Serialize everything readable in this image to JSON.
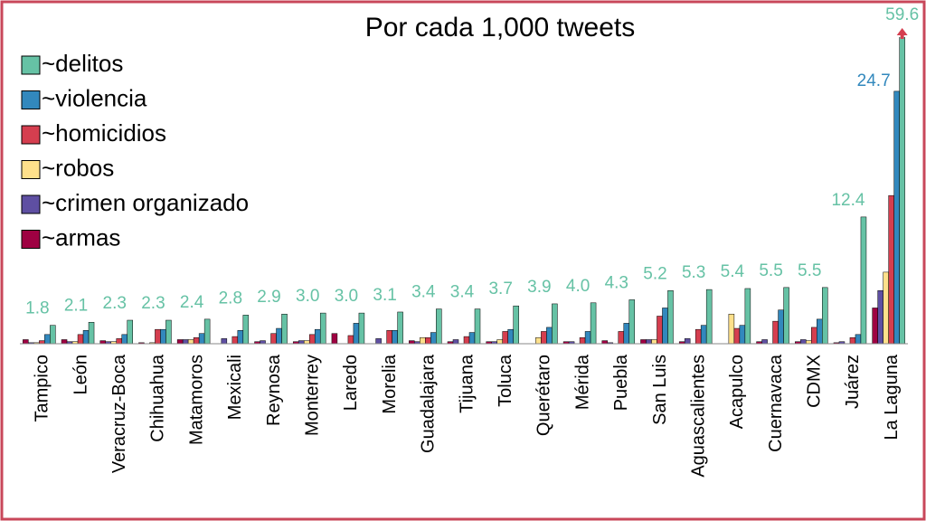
{
  "chart_data": {
    "type": "bar",
    "title": "Por cada 1,000 tweets",
    "categories": [
      "Tampico",
      "León",
      "Veracruz-Boca",
      "Chihuahua",
      "Matamoros",
      "Mexicali",
      "Reynosa",
      "Monterrey",
      "Laredo",
      "Morelia",
      "Guadalajara",
      "Tijuana",
      "Toluca",
      "Querétaro",
      "Mérida",
      "Puebla",
      "San Luis",
      "Aguascalientes",
      "Acapulco",
      "Cuernavaca",
      "CDMX",
      "Juárez",
      "La Laguna"
    ],
    "ylim": [
      0,
      30
    ],
    "legend": "upper left",
    "series": [
      {
        "name": "~delitos",
        "color": "#66c2a5",
        "values": [
          1.8,
          2.1,
          2.3,
          2.3,
          2.4,
          2.8,
          2.9,
          3.0,
          3.0,
          3.1,
          3.4,
          3.4,
          3.7,
          3.9,
          4.0,
          4.3,
          5.2,
          5.3,
          5.4,
          5.5,
          5.5,
          12.4,
          59.6
        ],
        "value_labels": [
          "1.8",
          "2.1",
          "2.3",
          "2.3",
          "2.4",
          "2.8",
          "2.9",
          "3.0",
          "3.0",
          "3.1",
          "3.4",
          "3.4",
          "3.7",
          "3.9",
          "4.0",
          "4.3",
          "5.2",
          "5.3",
          "5.4",
          "5.5",
          "5.5",
          "12.4",
          "59.6"
        ]
      },
      {
        "name": "~violencia",
        "color": "#3288bd",
        "values": [
          0.9,
          1.3,
          0.9,
          1.4,
          1.0,
          1.3,
          1.5,
          1.4,
          2.0,
          1.3,
          1.1,
          1.1,
          1.4,
          1.6,
          1.2,
          2.0,
          3.5,
          1.8,
          1.8,
          3.3,
          2.4,
          0.9,
          24.7
        ],
        "value_labels": [
          null,
          null,
          null,
          null,
          null,
          null,
          null,
          null,
          null,
          null,
          null,
          null,
          null,
          null,
          null,
          null,
          null,
          null,
          null,
          null,
          null,
          null,
          "24.7"
        ]
      },
      {
        "name": "~homicidios",
        "color": "#d53e4f",
        "values": [
          0.3,
          0.9,
          0.5,
          1.4,
          0.6,
          0.7,
          1.0,
          0.9,
          0.8,
          1.3,
          0.6,
          0.7,
          1.2,
          1.2,
          0.6,
          1.2,
          2.7,
          1.4,
          1.5,
          2.2,
          1.6,
          0.6,
          14.5
        ]
      },
      {
        "name": "~robos",
        "color": "#fee08b",
        "values": [
          0.1,
          0.2,
          0.2,
          0.1,
          0.4,
          0,
          0,
          0.3,
          0,
          0,
          0.6,
          0,
          0.4,
          0.6,
          0,
          0,
          0.4,
          0,
          2.9,
          0,
          0.3,
          0,
          7.0
        ]
      },
      {
        "name": "~crimen organizado",
        "color": "#5e4fa2",
        "values": [
          0.1,
          0.2,
          0.2,
          0,
          0.4,
          0.5,
          0.3,
          0.3,
          0,
          0.5,
          0.2,
          0.4,
          0.2,
          0,
          0.2,
          0.1,
          0.4,
          0.5,
          0,
          0.4,
          0.4,
          0.2,
          5.2
        ]
      },
      {
        "name": "~armas",
        "color": "#9e0142",
        "values": [
          0.4,
          0.4,
          0.3,
          0.1,
          0.4,
          0,
          0.2,
          0.2,
          1.0,
          0,
          0.3,
          0.2,
          0.2,
          0,
          0.2,
          0.3,
          0.4,
          0.2,
          0,
          0.2,
          0.2,
          0.1,
          3.5
        ]
      }
    ]
  }
}
